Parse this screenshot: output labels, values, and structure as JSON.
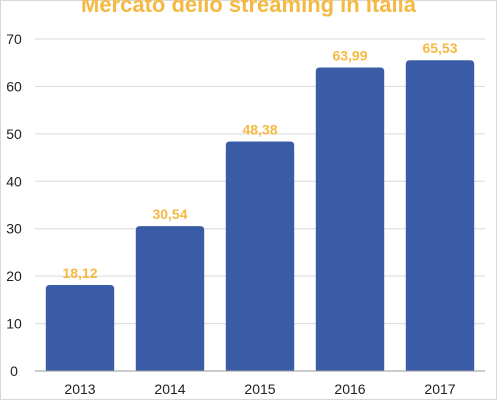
{
  "chart_data": {
    "type": "bar",
    "title": "Mercato dello streaming in Italia",
    "categories": [
      "2013",
      "2014",
      "2015",
      "2016",
      "2017"
    ],
    "values": [
      18.12,
      30.54,
      48.38,
      63.99,
      65.53
    ],
    "data_labels": [
      "18,12",
      "30,54",
      "48,38",
      "63,99",
      "65,53"
    ],
    "yticks": [
      0,
      10,
      20,
      30,
      40,
      50,
      60,
      70
    ],
    "ylim": [
      0,
      70
    ],
    "grid": true,
    "legend": "none",
    "xlabel": "",
    "ylabel": "",
    "colors": {
      "bar": "#3a5ba6",
      "data_label": "#f5b942",
      "title": "#f5b942",
      "grid": "#d9d9d9",
      "axis": "#999999"
    }
  }
}
